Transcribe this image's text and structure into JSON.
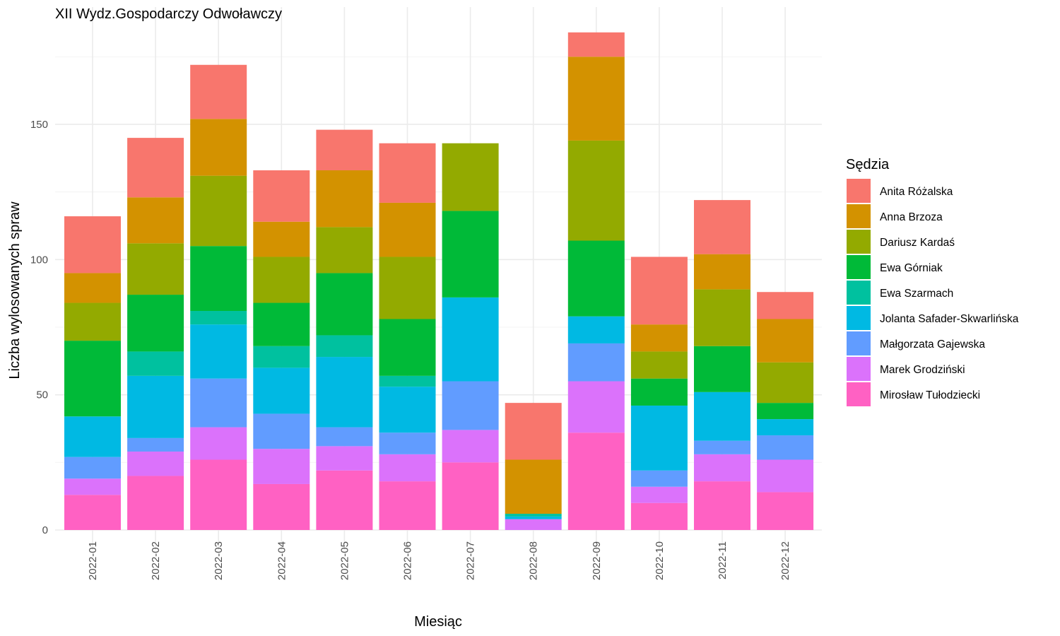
{
  "chart_data": {
    "type": "bar",
    "stacked": true,
    "title": "XII Wydz.Gospodarczy Odwoławczy",
    "xlabel": "Miesiąc",
    "ylabel": "Liczba wylosowanych spraw",
    "ylim": [
      0,
      190
    ],
    "yticks": [
      0,
      50,
      100,
      150
    ],
    "grid": true,
    "legend_title": "Sędzia",
    "legend_position": "right",
    "categories": [
      "2022-01",
      "2022-02",
      "2022-03",
      "2022-04",
      "2022-05",
      "2022-06",
      "2022-07",
      "2022-08",
      "2022-09",
      "2022-10",
      "2022-11",
      "2022-12"
    ],
    "series": [
      {
        "name": "Anita Różalska",
        "color": "#F8766D",
        "values": [
          21,
          22,
          20,
          19,
          15,
          22,
          0,
          21,
          9,
          25,
          20,
          10
        ]
      },
      {
        "name": "Anna Brzoza",
        "color": "#D39200",
        "values": [
          11,
          17,
          21,
          13,
          21,
          20,
          0,
          20,
          31,
          10,
          13,
          16
        ]
      },
      {
        "name": "Dariusz Kardaś",
        "color": "#93AA00",
        "values": [
          14,
          19,
          26,
          17,
          17,
          23,
          25,
          0,
          37,
          10,
          21,
          15
        ]
      },
      {
        "name": "Ewa Górniak",
        "color": "#00BA38",
        "values": [
          28,
          21,
          24,
          16,
          23,
          21,
          32,
          0,
          28,
          10,
          17,
          6
        ]
      },
      {
        "name": "Ewa Szarmach",
        "color": "#00C19F",
        "values": [
          0,
          9,
          5,
          8,
          8,
          4,
          0,
          1,
          0,
          0,
          0,
          0
        ]
      },
      {
        "name": "Jolanta Safader-Skwarlińska",
        "color": "#00B9E3",
        "values": [
          15,
          23,
          20,
          17,
          26,
          17,
          31,
          1,
          10,
          24,
          18,
          6
        ]
      },
      {
        "name": "Małgorzata Gajewska",
        "color": "#619CFF",
        "values": [
          8,
          5,
          18,
          13,
          7,
          8,
          18,
          0,
          14,
          6,
          5,
          9
        ]
      },
      {
        "name": "Marek Grodziński",
        "color": "#DB72FB",
        "values": [
          6,
          9,
          12,
          13,
          9,
          10,
          12,
          4,
          19,
          6,
          10,
          12
        ]
      },
      {
        "name": "Mirosław Tułodziecki",
        "color": "#FF61C3",
        "values": [
          13,
          20,
          26,
          17,
          22,
          18,
          25,
          0,
          36,
          10,
          18,
          14
        ]
      }
    ]
  }
}
